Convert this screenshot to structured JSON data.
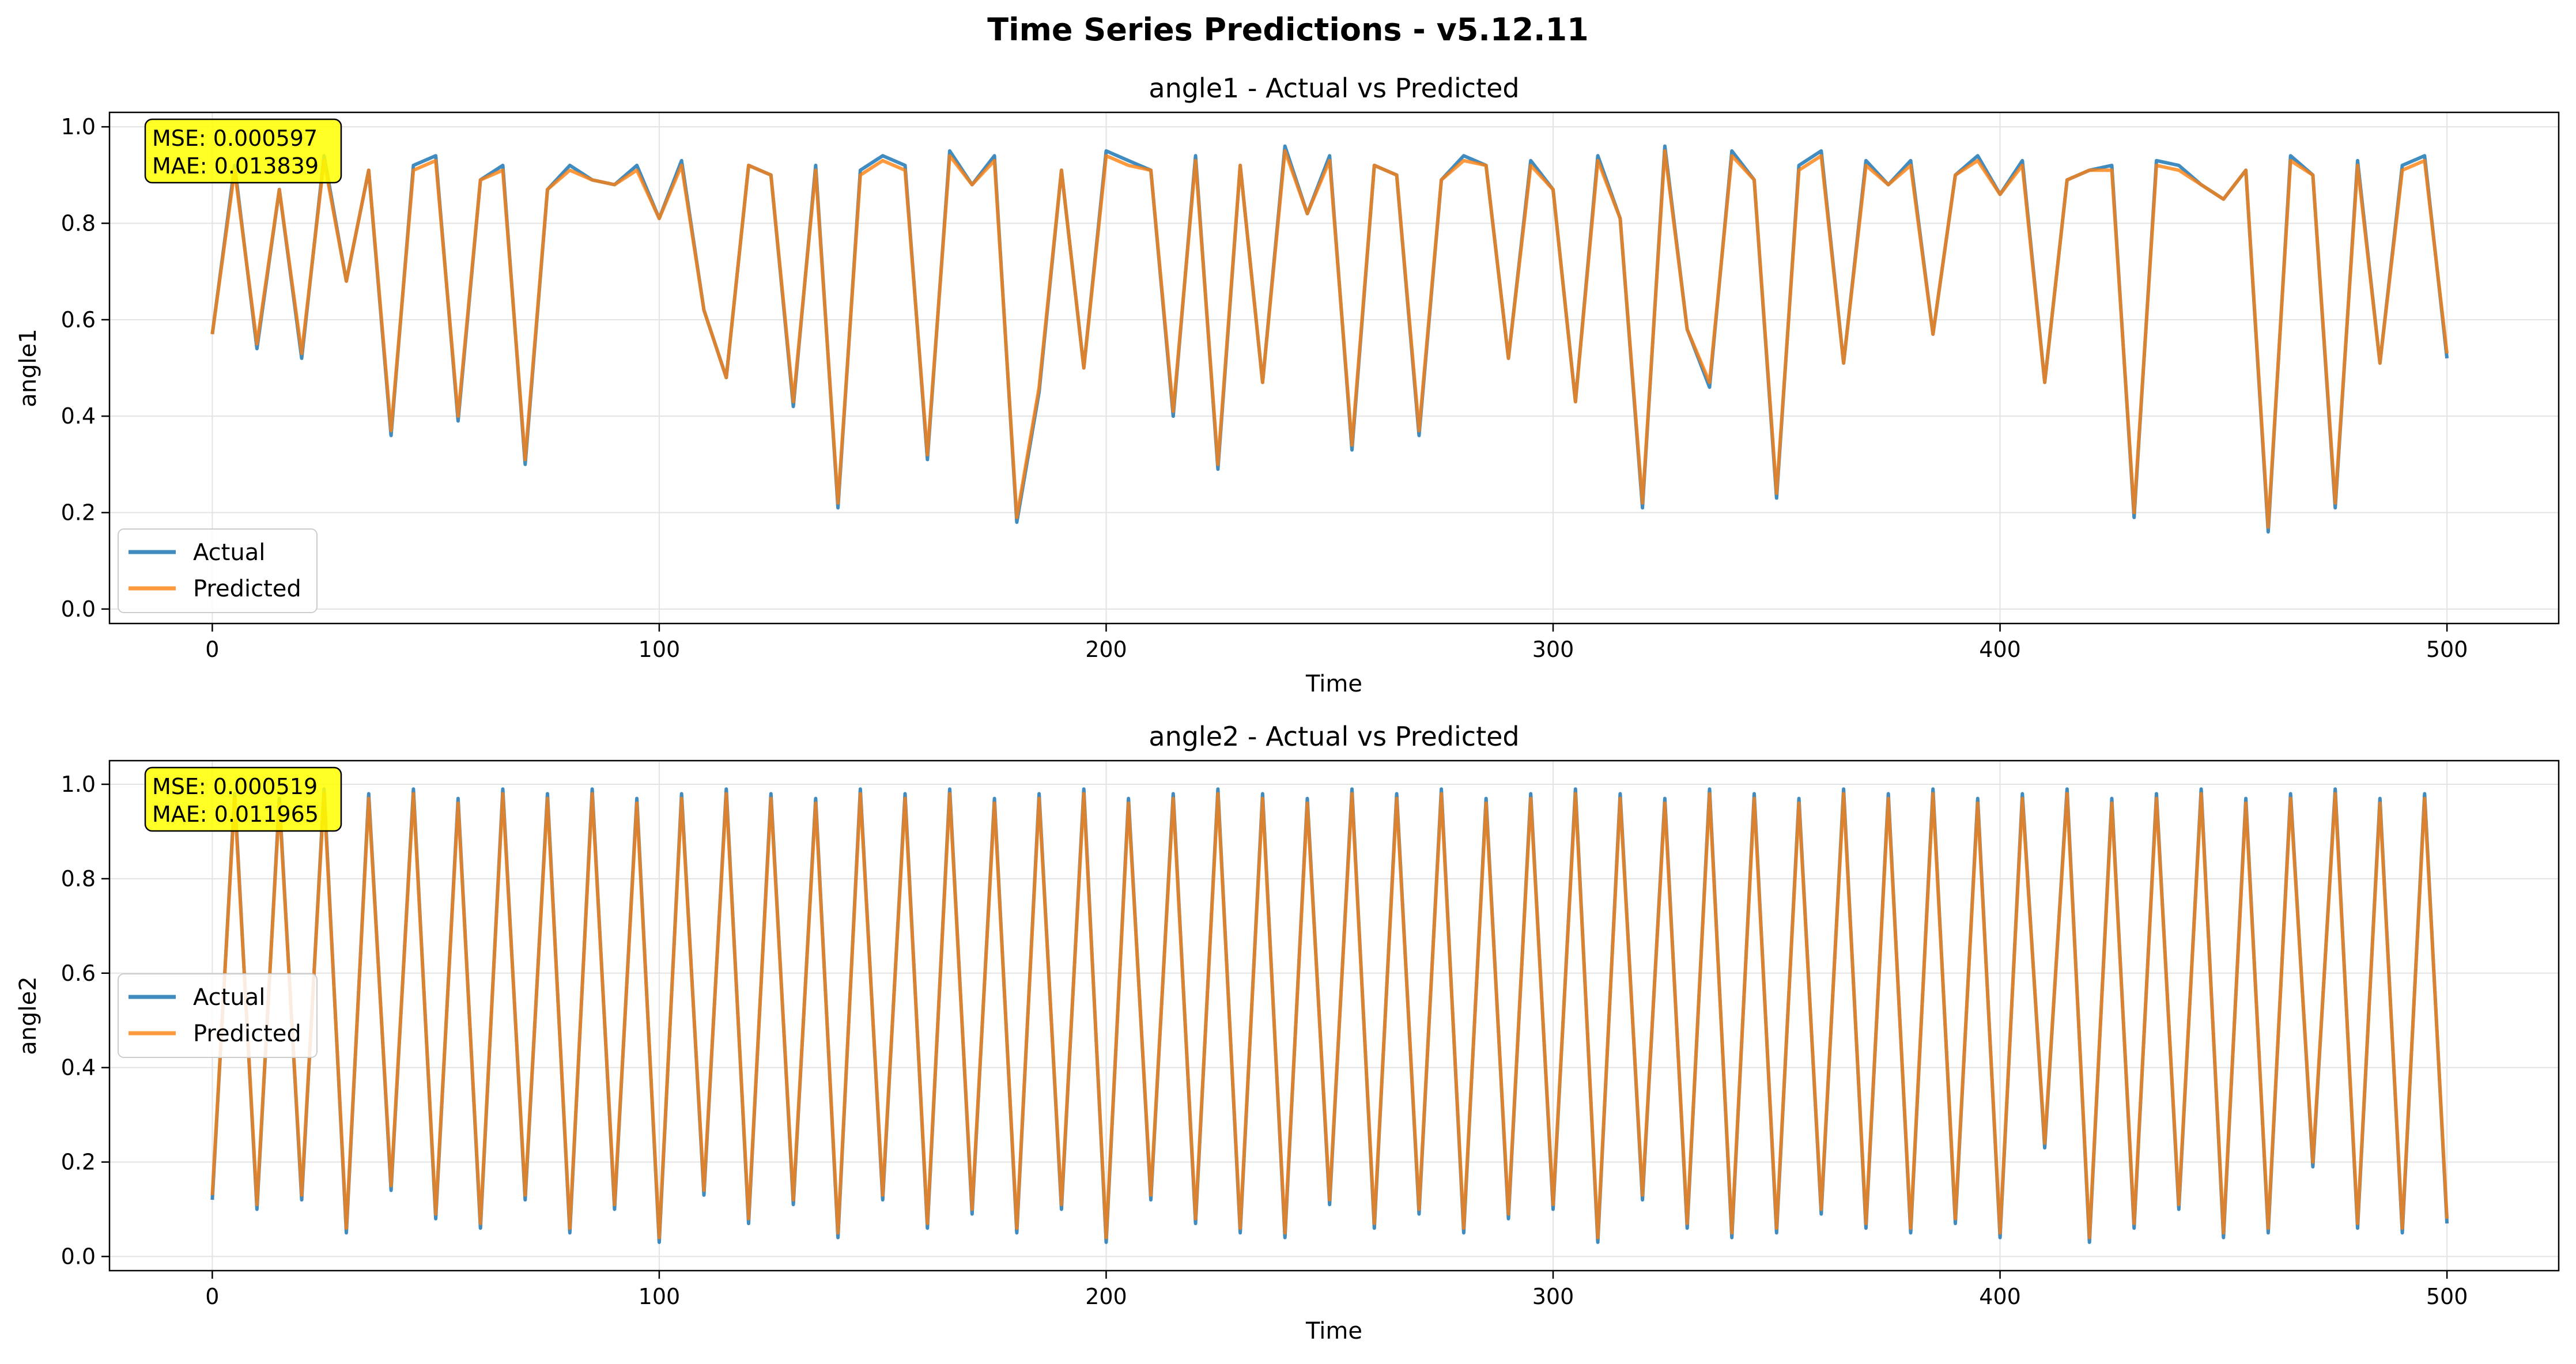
{
  "figure_title": "Time Series Predictions - v5.12.11",
  "colors": {
    "actual": "#1f77b4",
    "predicted": "#ff7f0e",
    "stats_box": "#ffff00",
    "grid": "#e3e3e3"
  },
  "chart_data": [
    {
      "type": "line",
      "title": "angle1 - Actual vs Predicted",
      "xlabel": "Time",
      "ylabel": "angle1",
      "xlim": [
        -23,
        525
      ],
      "ylim": [
        -0.03,
        1.03
      ],
      "xticks": [
        0,
        100,
        200,
        300,
        400,
        500
      ],
      "xtick_labels": [
        "0",
        "100",
        "200",
        "300",
        "400",
        "500"
      ],
      "yticks": [
        0.0,
        0.2,
        0.4,
        0.6,
        0.8,
        1.0
      ],
      "ytick_labels": [
        "0.0",
        "0.2",
        "0.4",
        "0.6",
        "0.8",
        "1.0"
      ],
      "grid": true,
      "legend_position": "lower-left",
      "stats": {
        "mse_text": "MSE: 0.000597",
        "mae_text": "MAE: 0.013839"
      },
      "x_start": 0,
      "x_step": 5,
      "series": [
        {
          "name": "Actual",
          "values": [
            0.57,
            0.92,
            0.54,
            0.87,
            0.52,
            0.94,
            0.68,
            0.91,
            0.36,
            0.92,
            0.94,
            0.39,
            0.89,
            0.92,
            0.3,
            0.87,
            0.92,
            0.89,
            0.88,
            0.92,
            0.81,
            0.93,
            0.62,
            0.48,
            0.92,
            0.9,
            0.42,
            0.92,
            0.21,
            0.91,
            0.94,
            0.92,
            0.31,
            0.95,
            0.88,
            0.94,
            0.18,
            0.45,
            0.91,
            0.5,
            0.95,
            0.93,
            0.91,
            0.4,
            0.94,
            0.29,
            0.92,
            0.47,
            0.96,
            0.82,
            0.94,
            0.33,
            0.92,
            0.9,
            0.36,
            0.89,
            0.94,
            0.92,
            0.52,
            0.93,
            0.87,
            0.43,
            0.94,
            0.81,
            0.21,
            0.96,
            0.58,
            0.46,
            0.95,
            0.89,
            0.23,
            0.92,
            0.95,
            0.51,
            0.93,
            0.88,
            0.93,
            0.57,
            0.9,
            0.94,
            0.86,
            0.93,
            0.47,
            0.89,
            0.91,
            0.92,
            0.19,
            0.93,
            0.92,
            0.88,
            0.85,
            0.91,
            0.16,
            0.94,
            0.9,
            0.21,
            0.93,
            0.51,
            0.92,
            0.94,
            0.52
          ]
        },
        {
          "name": "Predicted",
          "values": [
            0.57,
            0.91,
            0.55,
            0.87,
            0.53,
            0.93,
            0.68,
            0.91,
            0.37,
            0.91,
            0.93,
            0.4,
            0.89,
            0.91,
            0.31,
            0.87,
            0.91,
            0.89,
            0.88,
            0.91,
            0.81,
            0.92,
            0.62,
            0.48,
            0.92,
            0.9,
            0.43,
            0.91,
            0.22,
            0.9,
            0.93,
            0.91,
            0.32,
            0.94,
            0.88,
            0.93,
            0.19,
            0.46,
            0.91,
            0.5,
            0.94,
            0.92,
            0.91,
            0.41,
            0.93,
            0.3,
            0.92,
            0.47,
            0.95,
            0.82,
            0.93,
            0.34,
            0.92,
            0.9,
            0.37,
            0.89,
            0.93,
            0.92,
            0.52,
            0.92,
            0.87,
            0.43,
            0.93,
            0.81,
            0.22,
            0.95,
            0.58,
            0.47,
            0.94,
            0.89,
            0.24,
            0.91,
            0.94,
            0.51,
            0.92,
            0.88,
            0.92,
            0.57,
            0.9,
            0.93,
            0.86,
            0.92,
            0.47,
            0.89,
            0.91,
            0.91,
            0.2,
            0.92,
            0.91,
            0.88,
            0.85,
            0.91,
            0.17,
            0.93,
            0.9,
            0.22,
            0.92,
            0.51,
            0.91,
            0.93,
            0.53
          ]
        }
      ]
    },
    {
      "type": "line",
      "title": "angle2 - Actual vs Predicted",
      "xlabel": "Time",
      "ylabel": "angle2",
      "xlim": [
        -23,
        525
      ],
      "ylim": [
        -0.03,
        1.05
      ],
      "xticks": [
        0,
        100,
        200,
        300,
        400,
        500
      ],
      "xtick_labels": [
        "0",
        "100",
        "200",
        "300",
        "400",
        "500"
      ],
      "yticks": [
        0.0,
        0.2,
        0.4,
        0.6,
        0.8,
        1.0
      ],
      "ytick_labels": [
        "0.0",
        "0.2",
        "0.4",
        "0.6",
        "0.8",
        "1.0"
      ],
      "grid": true,
      "legend_position": "center-left",
      "stats": {
        "mse_text": "MSE: 0.000519",
        "mae_text": "MAE: 0.011965"
      },
      "x_start": 0,
      "x_step": 5,
      "series": [
        {
          "name": "Actual",
          "values": [
            0.12,
            0.98,
            0.1,
            0.97,
            0.12,
            0.99,
            0.05,
            0.98,
            0.14,
            0.99,
            0.08,
            0.97,
            0.06,
            0.99,
            0.12,
            0.98,
            0.05,
            0.99,
            0.1,
            0.97,
            0.03,
            0.98,
            0.13,
            0.99,
            0.07,
            0.98,
            0.11,
            0.97,
            0.04,
            0.99,
            0.12,
            0.98,
            0.06,
            0.99,
            0.09,
            0.97,
            0.05,
            0.98,
            0.1,
            0.99,
            0.03,
            0.97,
            0.12,
            0.98,
            0.07,
            0.99,
            0.05,
            0.98,
            0.04,
            0.97,
            0.11,
            0.99,
            0.06,
            0.98,
            0.09,
            0.99,
            0.05,
            0.97,
            0.08,
            0.98,
            0.1,
            0.99,
            0.03,
            0.98,
            0.12,
            0.97,
            0.06,
            0.99,
            0.04,
            0.98,
            0.05,
            0.97,
            0.09,
            0.99,
            0.06,
            0.98,
            0.05,
            0.99,
            0.07,
            0.97,
            0.04,
            0.98,
            0.23,
            0.99,
            0.03,
            0.97,
            0.06,
            0.98,
            0.1,
            0.99,
            0.04,
            0.97,
            0.05,
            0.98,
            0.19,
            0.99,
            0.06,
            0.97,
            0.05,
            0.98,
            0.07
          ]
        },
        {
          "name": "Predicted",
          "values": [
            0.13,
            0.97,
            0.11,
            0.96,
            0.13,
            0.98,
            0.06,
            0.97,
            0.15,
            0.98,
            0.09,
            0.96,
            0.07,
            0.98,
            0.13,
            0.97,
            0.06,
            0.98,
            0.11,
            0.96,
            0.04,
            0.97,
            0.14,
            0.98,
            0.08,
            0.97,
            0.12,
            0.96,
            0.05,
            0.98,
            0.13,
            0.97,
            0.07,
            0.98,
            0.1,
            0.96,
            0.06,
            0.97,
            0.11,
            0.98,
            0.04,
            0.96,
            0.13,
            0.97,
            0.08,
            0.98,
            0.06,
            0.97,
            0.05,
            0.96,
            0.12,
            0.98,
            0.07,
            0.97,
            0.1,
            0.98,
            0.06,
            0.96,
            0.09,
            0.97,
            0.11,
            0.98,
            0.04,
            0.97,
            0.13,
            0.96,
            0.07,
            0.98,
            0.05,
            0.97,
            0.06,
            0.96,
            0.1,
            0.98,
            0.07,
            0.97,
            0.06,
            0.98,
            0.08,
            0.96,
            0.05,
            0.97,
            0.24,
            0.98,
            0.04,
            0.96,
            0.07,
            0.97,
            0.11,
            0.98,
            0.05,
            0.96,
            0.06,
            0.97,
            0.2,
            0.98,
            0.07,
            0.96,
            0.06,
            0.97,
            0.08
          ]
        }
      ]
    }
  ]
}
